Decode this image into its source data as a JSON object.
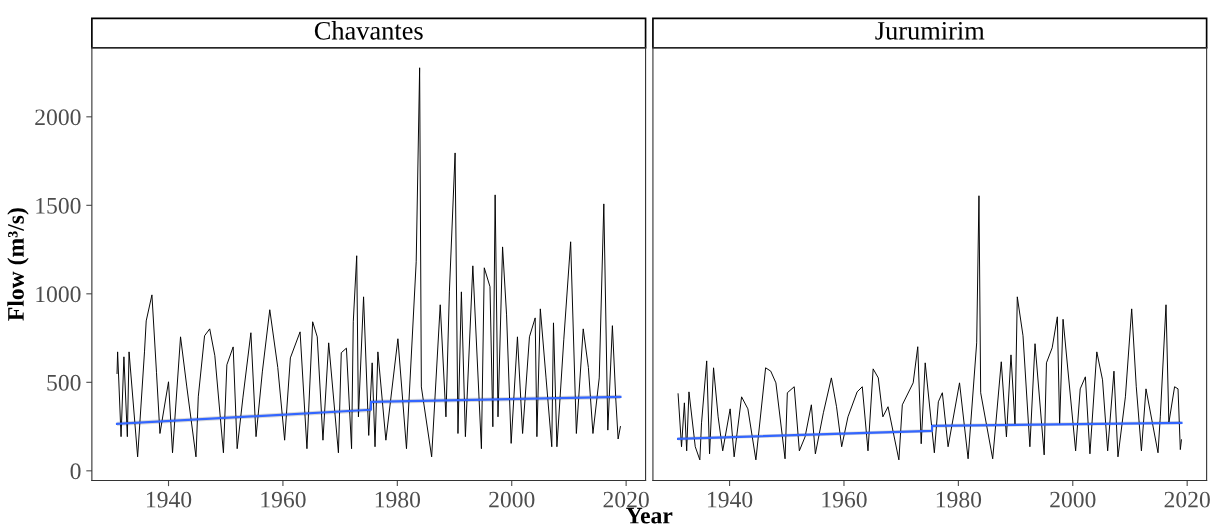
{
  "chart_data": [
    {
      "type": "line",
      "title": "Chavantes",
      "ylabel": "Flow (m³/s)",
      "xlabel": "Year",
      "xlim": [
        1926.6,
        2023.4
      ],
      "xticks": [
        1940,
        1960,
        1980,
        2000,
        2020
      ],
      "ylim": [
        -55,
        2390
      ],
      "yticks": [
        0,
        500,
        1000,
        1500,
        2000
      ],
      "grid": false,
      "legend": false,
      "series": [
        {
          "color": "#000000",
          "x": [
            1931.0,
            1931.1,
            1931.7,
            1932.2,
            1932.8,
            1933.1,
            1934.6,
            1935.8,
            1936.1,
            1937.1,
            1937.9,
            1938.5,
            1940.0,
            1940.7,
            1942.1,
            1943.2,
            1944.8,
            1945.2,
            1946.3,
            1947.2,
            1948.1,
            1949.6,
            1950.2,
            1951.3,
            1952.0,
            1953.0,
            1954.4,
            1955.3,
            1956.4,
            1957.7,
            1959.1,
            1960.3,
            1961.3,
            1963.0,
            1964.2,
            1965.2,
            1966.0,
            1967.0,
            1968.0,
            1969.7,
            1970.2,
            1971.1,
            1972.0,
            1972.3,
            1972.9,
            1973.2,
            1974.1,
            1975.0,
            1975.6,
            1976.1,
            1976.6,
            1978.0,
            1980.1,
            1981.6,
            1983.3,
            1983.9,
            1984.2,
            1986.0,
            1987.5,
            1988.5,
            1989.1,
            1990.1,
            1990.6,
            1991.2,
            1991.9,
            1993.2,
            1994.7,
            1995.2,
            1996.2,
            1996.7,
            1997.1,
            1997.6,
            1998.4,
            1999.1,
            1999.9,
            2001.0,
            2001.9,
            2003.1,
            2004.1,
            2004.4,
            2005.0,
            2006.0,
            2007.0,
            2007.3,
            2007.9,
            2009.1,
            2010.3,
            2011.3,
            2012.5,
            2013.4,
            2014.2,
            2015.3,
            2016.1,
            2016.8,
            2017.6,
            2018.2,
            2018.6,
            2019.0
          ],
          "values": [
            550,
            672,
            193,
            644,
            193,
            672,
            79,
            672,
            847,
            994,
            554,
            211,
            503,
            102,
            757,
            474,
            79,
            418,
            763,
            802,
            650,
            102,
            599,
            700,
            125,
            412,
            780,
            193,
            559,
            910,
            584,
            173,
            638,
            785,
            125,
            842,
            757,
            173,
            723,
            102,
            667,
            693,
            125,
            842,
            1215,
            305,
            983,
            200,
            610,
            136,
            672,
            173,
            746,
            125,
            1181,
            2277,
            474,
            79,
            938,
            305,
            1011,
            1796,
            211,
            1011,
            193,
            1158,
            125,
            1147,
            1040,
            249,
            1559,
            305,
            1265,
            881,
            155,
            757,
            211,
            757,
            864,
            193,
            915,
            525,
            136,
            836,
            136,
            740,
            1294,
            211,
            802,
            584,
            211,
            525,
            1508,
            230,
            820,
            400,
            180,
            250
          ]
        },
        {
          "color": "#3366ff",
          "x": [
            1931,
            1975.4,
            1975.4,
            2019
          ],
          "values": [
            265,
            345,
            390,
            418
          ],
          "lower": [
            253,
            333,
            378,
            406
          ],
          "upper": [
            277,
            357,
            402,
            430
          ]
        }
      ]
    },
    {
      "type": "line",
      "title": "Jurumirim",
      "xlim": [
        1926.6,
        2023.4
      ],
      "xticks": [
        1940,
        1960,
        1980,
        2000,
        2020
      ],
      "ylim": [
        -55,
        2390
      ],
      "yticks": [
        0,
        500,
        1000,
        1500,
        2000
      ],
      "tick_labels": "x",
      "grid": false,
      "legend": false,
      "series": [
        {
          "color": "#000000",
          "x": [
            1931.0,
            1931.6,
            1932.1,
            1932.5,
            1932.9,
            1934.0,
            1934.8,
            1935.1,
            1936.0,
            1936.5,
            1937.2,
            1938.0,
            1938.8,
            1940.1,
            1940.8,
            1942.1,
            1943.2,
            1944.6,
            1946.3,
            1947.2,
            1948.1,
            1949.7,
            1950.1,
            1951.3,
            1952.2,
            1953.2,
            1954.3,
            1955.0,
            1956.4,
            1957.8,
            1958.7,
            1959.6,
            1960.7,
            1962.3,
            1963.2,
            1964.2,
            1965.1,
            1966.0,
            1966.8,
            1967.7,
            1969.6,
            1970.2,
            1972.1,
            1972.9,
            1973.5,
            1974.2,
            1975.8,
            1976.5,
            1977.2,
            1978.2,
            1980.2,
            1981.7,
            1983.2,
            1983.6,
            1983.9,
            1986.0,
            1987.5,
            1988.4,
            1989.2,
            1989.9,
            1990.3,
            1991.3,
            1992.5,
            1993.4,
            1995.0,
            1995.4,
            1996.4,
            1997.3,
            1997.7,
            1998.3,
            2000.5,
            2001.3,
            2002.2,
            2003.0,
            2004.2,
            2005.2,
            2006.1,
            2007.2,
            2007.9,
            2009.2,
            2010.3,
            2011.1,
            2012.0,
            2012.8,
            2014.9,
            2015.3,
            2016.3,
            2016.8,
            2017.8,
            2018.4,
            2018.8,
            2019.0
          ],
          "values": [
            435,
            136,
            384,
            113,
            446,
            136,
            62,
            271,
            621,
            96,
            582,
            305,
            113,
            350,
            79,
            418,
            350,
            62,
            582,
            563,
            497,
            68,
            441,
            475,
            113,
            192,
            373,
            96,
            328,
            525,
            362,
            136,
            305,
            446,
            475,
            113,
            576,
            525,
            305,
            362,
            62,
            373,
            497,
            701,
            153,
            610,
            102,
            390,
            441,
            136,
            497,
            68,
            723,
            1554,
            441,
            68,
            616,
            192,
            655,
            260,
            983,
            763,
            136,
            718,
            90,
            610,
            695,
            870,
            260,
            856,
            113,
            463,
            531,
            96,
            672,
            514,
            113,
            563,
            79,
            418,
            915,
            475,
            113,
            463,
            102,
            305,
            938,
            271,
            475,
            463,
            120,
            175
          ]
        },
        {
          "color": "#3366ff",
          "x": [
            1931,
            1975.4,
            1975.4,
            2019
          ],
          "values": [
            181,
            226,
            254,
            271
          ],
          "lower": [
            171,
            216,
            244,
            261
          ],
          "upper": [
            191,
            236,
            264,
            281
          ]
        }
      ]
    }
  ]
}
